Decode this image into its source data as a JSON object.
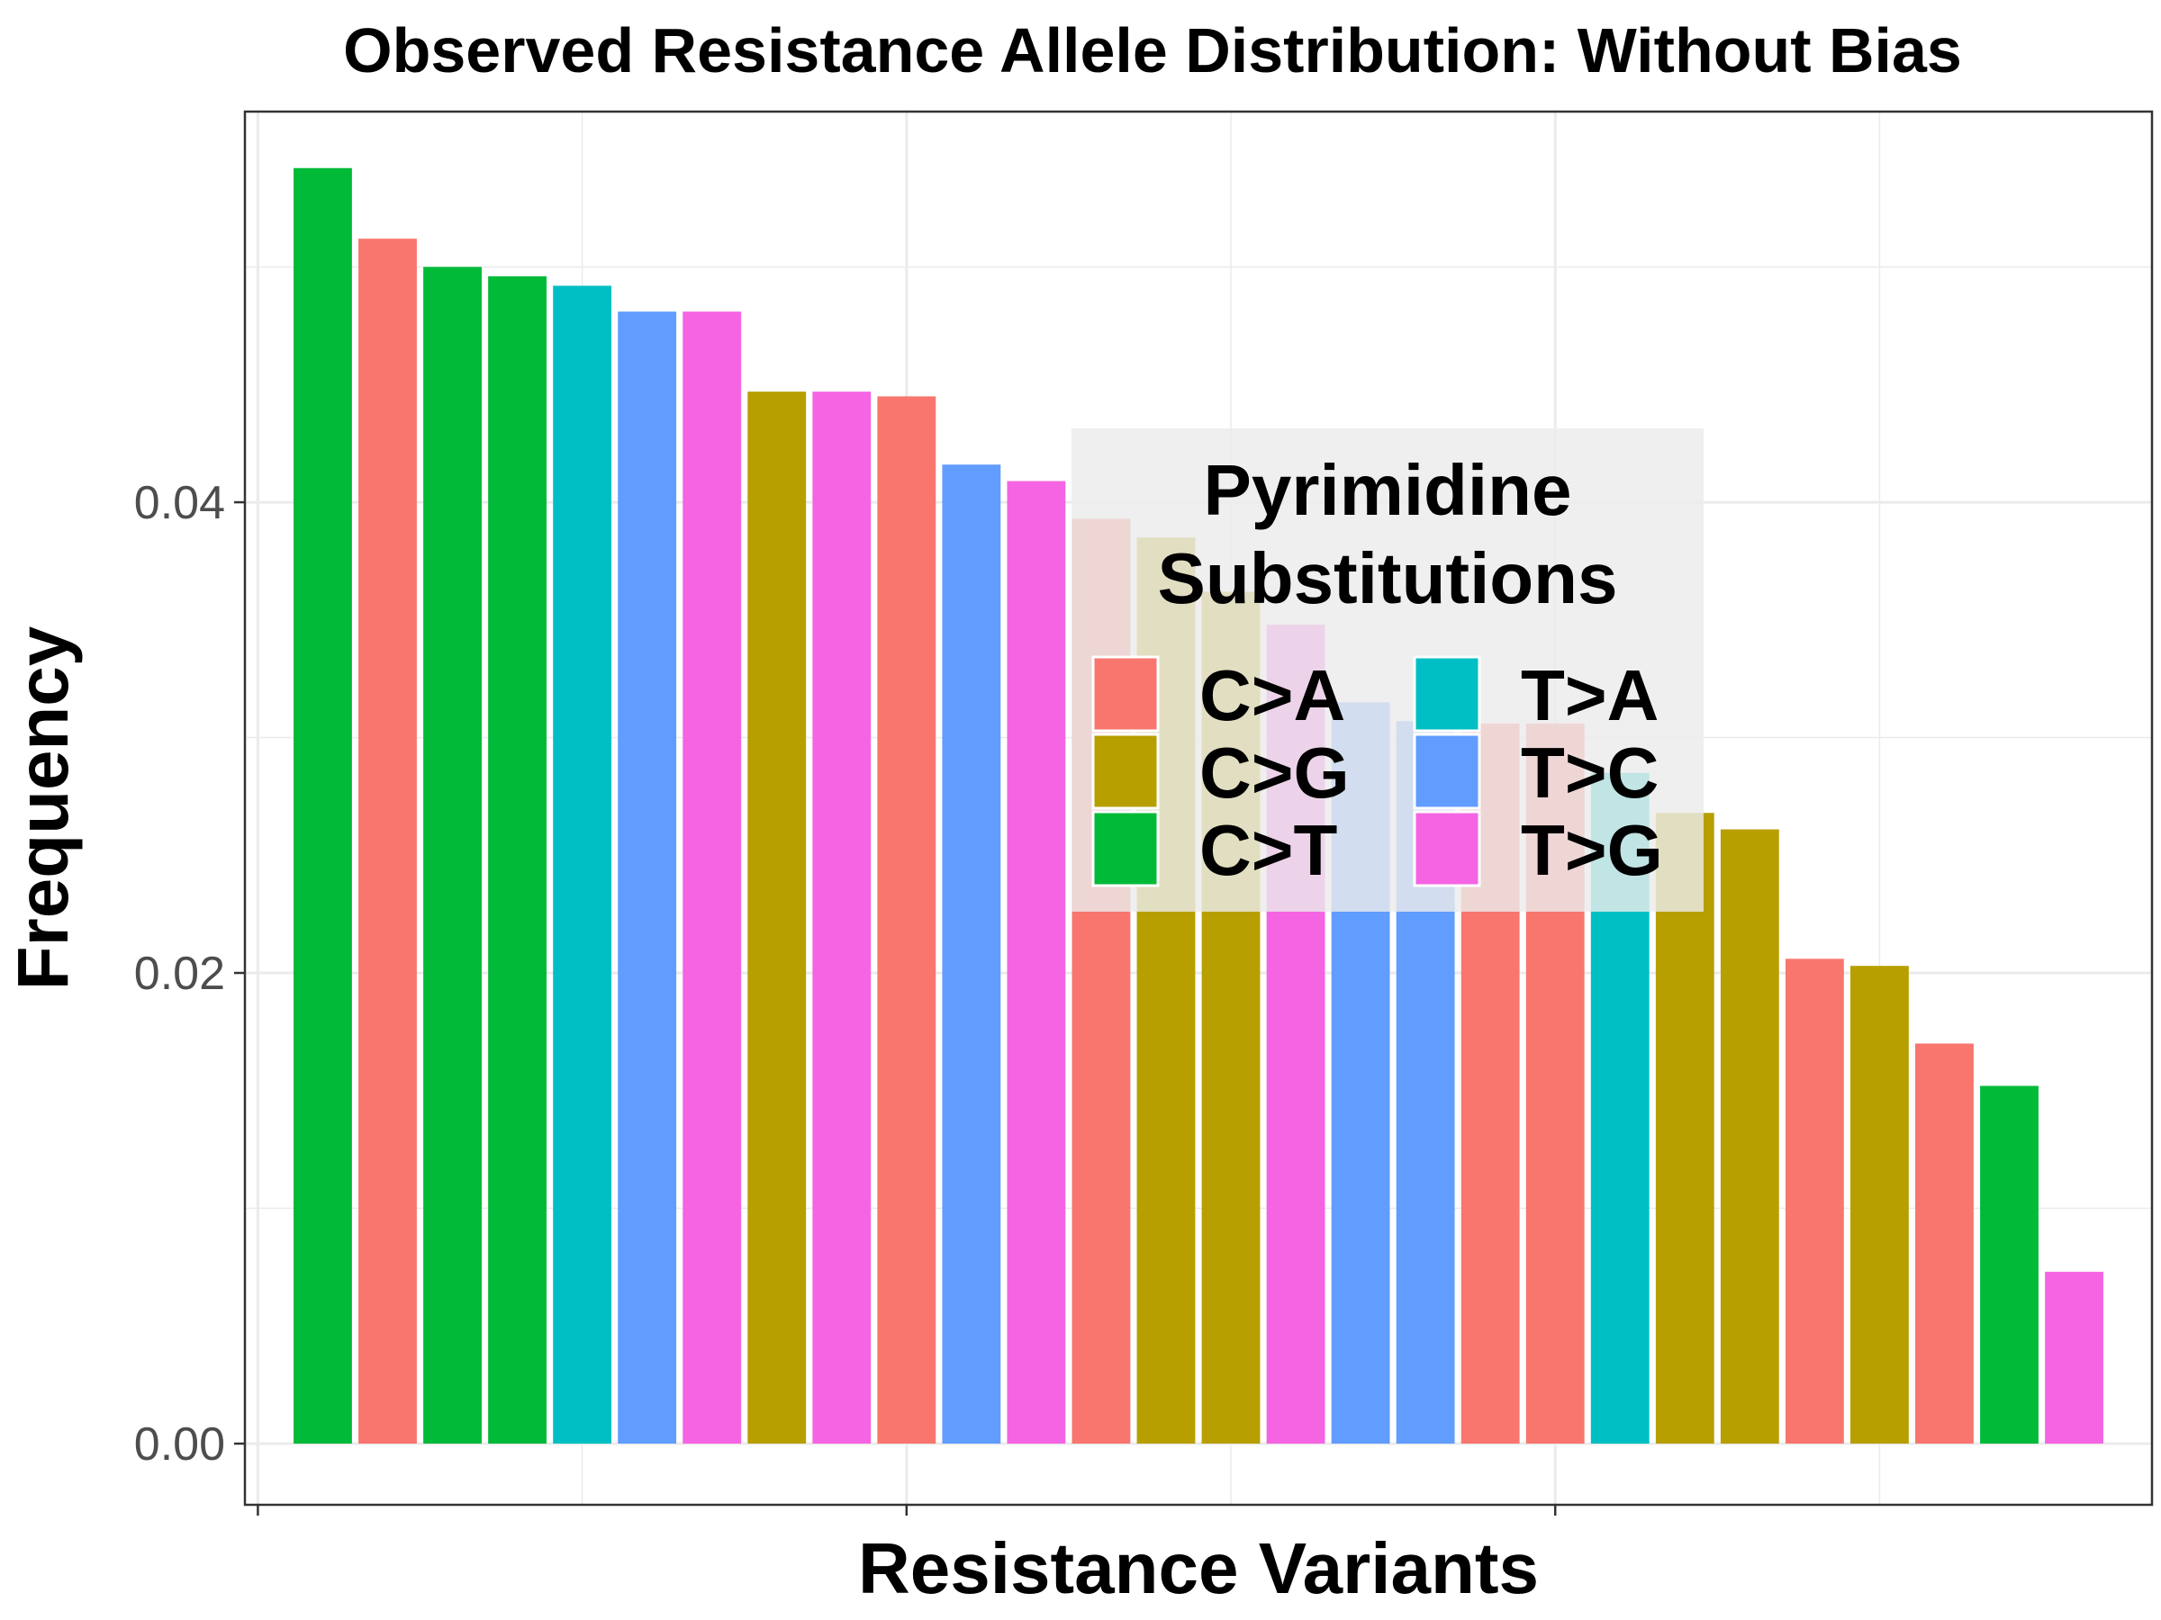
{
  "chart_data": {
    "type": "bar",
    "title": "Observed Resistance Allele Distribution: Without Bias",
    "xlabel": "Resistance Variants",
    "ylabel": "Frequency",
    "ylim": [
      -0.0026,
      0.0566
    ],
    "yticks": [
      "0.00",
      "0.02",
      "0.04"
    ],
    "grid": true,
    "legend": {
      "title_lines": [
        "Pyrimidine",
        "Substitutions"
      ],
      "position": "upper-right-inside",
      "entries": [
        {
          "label": "C>A",
          "color": "#F8766D"
        },
        {
          "label": "C>G",
          "color": "#B79F00"
        },
        {
          "label": "C>T",
          "color": "#00BA38"
        },
        {
          "label": "T>A",
          "color": "#00BFC4"
        },
        {
          "label": "T>C",
          "color": "#619CFF"
        },
        {
          "label": "T>G",
          "color": "#F564E3"
        }
      ]
    },
    "bars": [
      {
        "substitution": "C>T",
        "value": 0.0542
      },
      {
        "substitution": "C>A",
        "value": 0.0512
      },
      {
        "substitution": "C>T",
        "value": 0.05
      },
      {
        "substitution": "C>T",
        "value": 0.0496
      },
      {
        "substitution": "T>A",
        "value": 0.0492
      },
      {
        "substitution": "T>C",
        "value": 0.0481
      },
      {
        "substitution": "T>G",
        "value": 0.0481
      },
      {
        "substitution": "C>G",
        "value": 0.0447
      },
      {
        "substitution": "T>G",
        "value": 0.0447
      },
      {
        "substitution": "C>A",
        "value": 0.0445
      },
      {
        "substitution": "T>C",
        "value": 0.0416
      },
      {
        "substitution": "T>G",
        "value": 0.0409
      },
      {
        "substitution": "C>A",
        "value": 0.0393
      },
      {
        "substitution": "C>G",
        "value": 0.0385
      },
      {
        "substitution": "C>G",
        "value": 0.0362
      },
      {
        "substitution": "T>G",
        "value": 0.0348
      },
      {
        "substitution": "T>C",
        "value": 0.0315
      },
      {
        "substitution": "T>C",
        "value": 0.0307
      },
      {
        "substitution": "C>A",
        "value": 0.0306
      },
      {
        "substitution": "C>A",
        "value": 0.0306
      },
      {
        "substitution": "T>A",
        "value": 0.0285
      },
      {
        "substitution": "C>G",
        "value": 0.0268
      },
      {
        "substitution": "C>G",
        "value": 0.0261
      },
      {
        "substitution": "C>A",
        "value": 0.0206
      },
      {
        "substitution": "C>G",
        "value": 0.0203
      },
      {
        "substitution": "C>A",
        "value": 0.017
      },
      {
        "substitution": "C>T",
        "value": 0.0152
      },
      {
        "substitution": "T>G",
        "value": 0.0073
      }
    ]
  }
}
